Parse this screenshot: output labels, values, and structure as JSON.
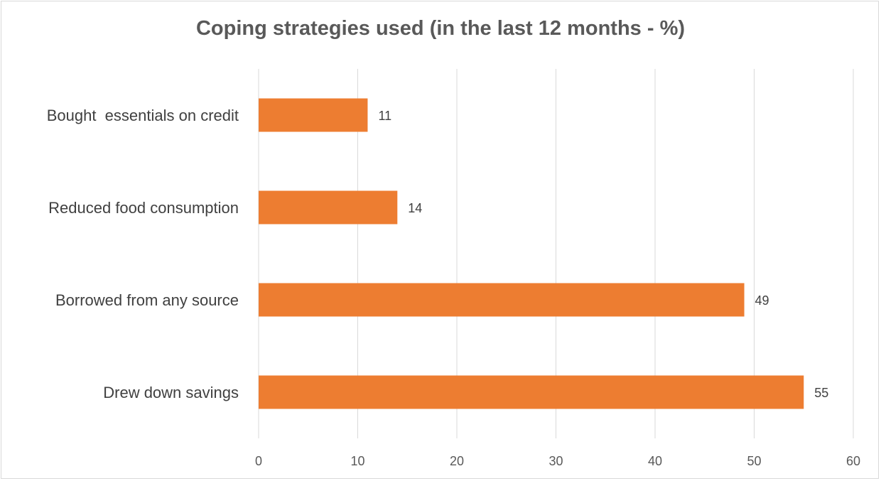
{
  "chart_data": {
    "type": "bar",
    "orientation": "horizontal",
    "title": "Coping strategies used (in the last 12 months - %)",
    "categories": [
      "Bought  essentials on credit",
      "Reduced food consumption",
      "Borrowed from any source",
      "Drew down savings"
    ],
    "values": [
      11,
      14,
      49,
      55
    ],
    "xlim": [
      0,
      60
    ],
    "xticks": [
      0,
      10,
      20,
      30,
      40,
      50,
      60
    ],
    "grid": true,
    "data_labels": true,
    "bar_color": "#ed7d31",
    "grid_color": "#d9d9d9"
  }
}
